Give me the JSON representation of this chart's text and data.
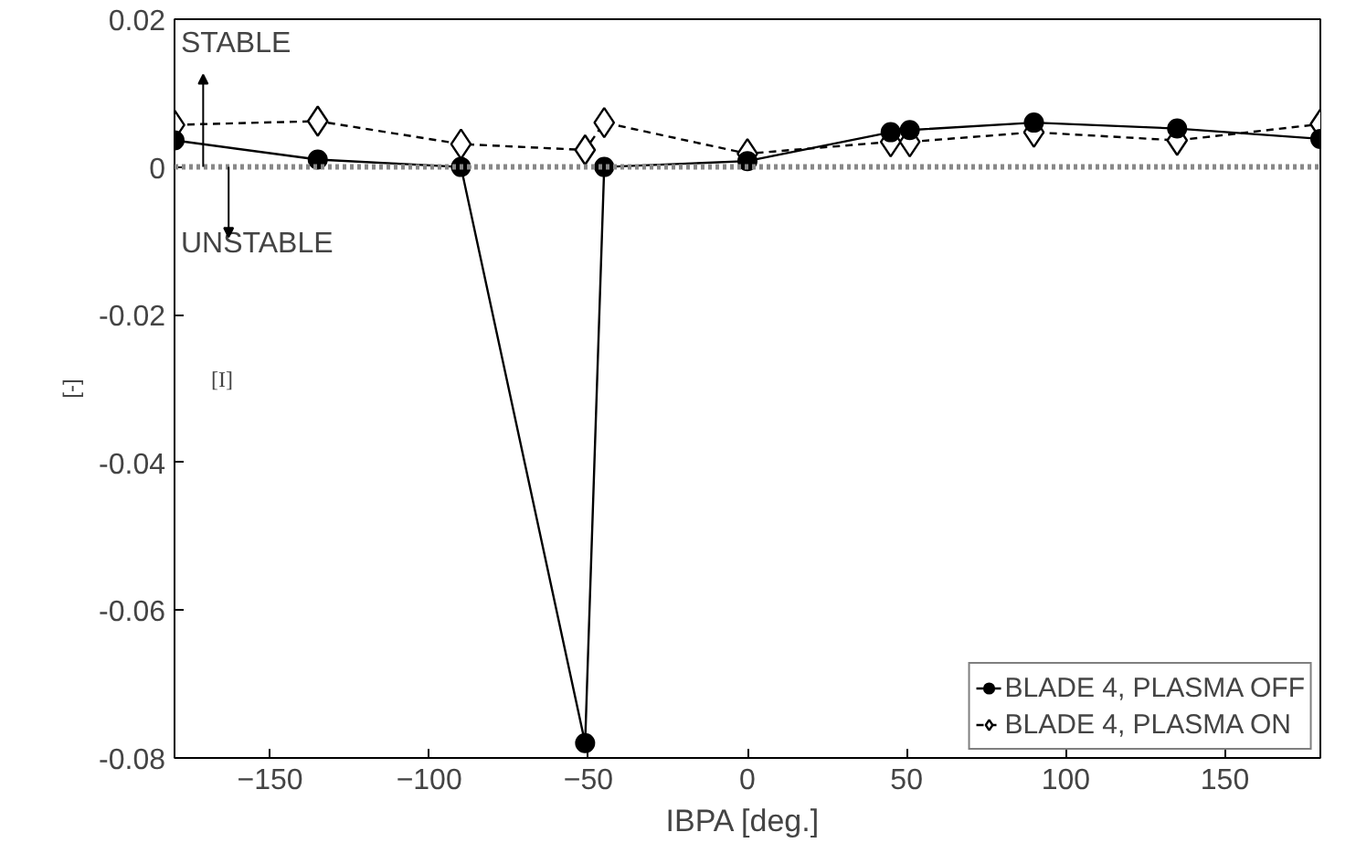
{
  "chart_data": {
    "type": "line",
    "xlabel": "IBPA  [deg.]",
    "ylabel": "[-]",
    "annotations": [
      "STABLE",
      "UNSTABLE",
      "[I]"
    ],
    "series": [
      {
        "name": "BLADE 4, PLASMA OFF",
        "color": "#000000",
        "marker": "circle",
        "line_style": "solid",
        "x": [
          -180,
          -135,
          -90,
          -51,
          -45,
          0,
          45,
          51,
          90,
          135,
          180
        ],
        "values": [
          0.0036,
          0.001,
          0,
          -0.078,
          0,
          0.0008,
          0.0047,
          0.005,
          0.006,
          0.0052,
          0.0038
        ]
      },
      {
        "name": "BLADE 4, PLASMA ON",
        "color": "#000000",
        "marker": "diamond",
        "line_style": "dashed",
        "x": [
          -180,
          -135,
          -90,
          -51,
          -45,
          0,
          45,
          51,
          90,
          135,
          180
        ],
        "values": [
          0.0057,
          0.0062,
          0.0031,
          0.0023,
          0.006,
          0.0018,
          0.0034,
          0.0034,
          0.0047,
          0.0036,
          0.0058
        ]
      }
    ],
    "ref_lines": [
      {
        "axis": "y",
        "value": 0,
        "color": "#888888",
        "line_style": "dotted"
      }
    ],
    "xlim": [
      -180,
      180
    ],
    "ylim": [
      -0.08,
      0.02
    ],
    "xticks": [
      -150,
      -100,
      -50,
      0,
      50,
      100,
      150
    ],
    "yticks": [
      -0.08,
      -0.06,
      -0.04,
      -0.02,
      0,
      0.02
    ],
    "grid": false,
    "legend": "bottom right"
  }
}
